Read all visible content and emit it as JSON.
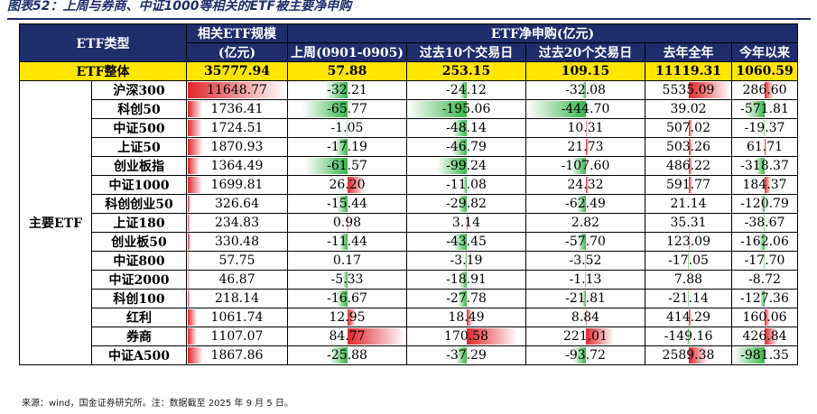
{
  "title": "图表52：上周与券商、中证1000等相关的ETF被主要净申购",
  "header": {
    "etf_type": "ETF类型",
    "scale_line1": "相关ETF规模",
    "scale_line2": "(亿元)",
    "net_purchase": "ETF净申购(亿元)",
    "columns": [
      "上周(0901-0905)",
      "过去10个交易日",
      "过去20个交易日",
      "去年全年",
      "今年以来"
    ]
  },
  "total": {
    "label": "ETF整体",
    "values": [
      "35777.94",
      "57.88",
      "253.15",
      "109.15",
      "11119.31",
      "1060.59"
    ]
  },
  "group_label": "主要ETF",
  "rows": [
    {
      "name": "沪深300",
      "values": [
        "11648.77",
        "-32.21",
        "-24.12",
        "-32.08",
        "5535.09",
        "286.60"
      ]
    },
    {
      "name": "科创50",
      "values": [
        "1736.41",
        "-65.77",
        "-195.06",
        "-444.70",
        "39.02",
        "-571.81"
      ]
    },
    {
      "name": "中证500",
      "values": [
        "1724.51",
        "-1.05",
        "-48.14",
        "10.31",
        "507.02",
        "-19.37"
      ]
    },
    {
      "name": "上证50",
      "values": [
        "1870.93",
        "-17.19",
        "-46.79",
        "21.73",
        "503.26",
        "61.71"
      ]
    },
    {
      "name": "创业板指",
      "values": [
        "1364.49",
        "-61.57",
        "-99.24",
        "-107.60",
        "486.22",
        "-318.37"
      ]
    },
    {
      "name": "中证1000",
      "values": [
        "1699.81",
        "26.20",
        "-11.08",
        "24.32",
        "591.77",
        "184.37"
      ]
    },
    {
      "name": "科创创业50",
      "values": [
        "326.64",
        "-15.44",
        "-29.82",
        "-62.49",
        "21.14",
        "-120.79"
      ]
    },
    {
      "name": "上证180",
      "values": [
        "234.83",
        "0.98",
        "3.14",
        "2.82",
        "35.31",
        "-38.67"
      ]
    },
    {
      "name": "创业板50",
      "values": [
        "330.48",
        "-11.44",
        "-43.45",
        "-57.70",
        "123.09",
        "-162.06"
      ]
    },
    {
      "name": "中证800",
      "values": [
        "57.75",
        "0.17",
        "-3.19",
        "-3.52",
        "-17.05",
        "-17.70"
      ]
    },
    {
      "name": "中证2000",
      "values": [
        "46.87",
        "-5.33",
        "-18.91",
        "-1.13",
        "7.88",
        "-8.72"
      ]
    },
    {
      "name": "科创100",
      "values": [
        "218.14",
        "-16.67",
        "-27.78",
        "-21.81",
        "-21.14",
        "-127.36"
      ]
    },
    {
      "name": "红利",
      "values": [
        "1061.74",
        "12.95",
        "18.49",
        "8.84",
        "414.29",
        "160.06"
      ]
    },
    {
      "name": "券商",
      "values": [
        "1107.07",
        "84.77",
        "170.58",
        "221.01",
        "-149.16",
        "426.84"
      ]
    },
    {
      "name": "中证A500",
      "values": [
        "1867.86",
        "-25.88",
        "-37.29",
        "-93.72",
        "2589.38",
        "-981.35"
      ]
    }
  ],
  "colors": {
    "header_bg": "#1f2d6b",
    "total_bg": "#ffe500",
    "positive": "#e0262c",
    "negative": "#39b54a"
  },
  "source": "来源：wind，国金证券研究所。注：数据截至 2025 年 9 月 5 日。"
}
